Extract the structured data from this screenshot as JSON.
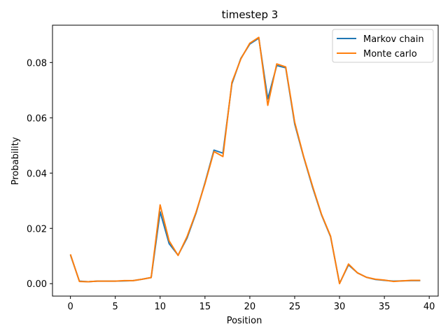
{
  "chart_data": {
    "type": "line",
    "title": "timestep 3",
    "xlabel": "Position",
    "ylabel": "Probability",
    "xlim": [
      -2,
      41
    ],
    "ylim": [
      -0.0045,
      0.0935
    ],
    "xticks": [
      0,
      5,
      10,
      15,
      20,
      25,
      30,
      35,
      40
    ],
    "yticks": [
      0.0,
      0.02,
      0.04,
      0.06,
      0.08
    ],
    "ytick_labels": [
      "0.00",
      "0.02",
      "0.04",
      "0.06",
      "0.08"
    ],
    "grid": false,
    "legend_placement": "top-right",
    "x": [
      0,
      1,
      2,
      3,
      4,
      5,
      6,
      7,
      8,
      9,
      10,
      11,
      12,
      13,
      14,
      15,
      16,
      17,
      18,
      19,
      20,
      21,
      22,
      23,
      24,
      25,
      26,
      27,
      28,
      29,
      30,
      31,
      32,
      33,
      34,
      35,
      36,
      37,
      38,
      39
    ],
    "series": [
      {
        "name": "Markov chain",
        "color": "#1f77b4",
        "values": [
          0.0104,
          0.0009,
          0.0007,
          0.0009,
          0.0009,
          0.0009,
          0.001,
          0.0011,
          0.0016,
          0.0022,
          0.026,
          0.0145,
          0.0103,
          0.0165,
          0.0255,
          0.0365,
          0.0483,
          0.0472,
          0.0723,
          0.0815,
          0.0867,
          0.0888,
          0.0668,
          0.0789,
          0.0781,
          0.0578,
          0.0458,
          0.0348,
          0.0248,
          0.017,
          0.0001,
          0.0068,
          0.0039,
          0.0023,
          0.0015,
          0.0012,
          0.0009,
          0.001,
          0.0011,
          0.0011
        ]
      },
      {
        "name": "Monte carlo",
        "color": "#ff7f0e",
        "values": [
          0.0106,
          0.0008,
          0.0007,
          0.0009,
          0.0009,
          0.0009,
          0.0011,
          0.0011,
          0.0016,
          0.0022,
          0.0285,
          0.0155,
          0.0102,
          0.017,
          0.0258,
          0.0362,
          0.0478,
          0.046,
          0.0728,
          0.0813,
          0.087,
          0.0891,
          0.0645,
          0.0795,
          0.0784,
          0.0584,
          0.046,
          0.0352,
          0.025,
          0.0172,
          0.0,
          0.0071,
          0.0039,
          0.0023,
          0.0016,
          0.0013,
          0.0008,
          0.001,
          0.0012,
          0.0012
        ]
      }
    ]
  }
}
